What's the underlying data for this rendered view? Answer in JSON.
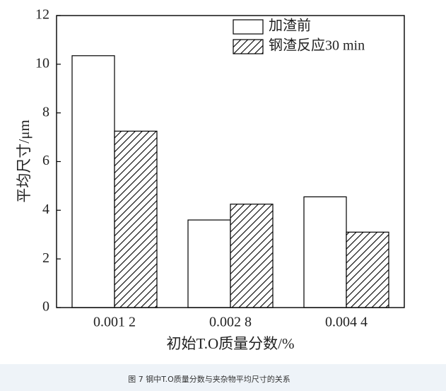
{
  "chart_data": {
    "type": "bar",
    "caption": "图 7 钢中T.O质量分数与夹杂物平均尺寸的关系",
    "xlabel": "初始T.O质量分数/%",
    "ylabel": "平均尺寸/μm",
    "categories": [
      "0.001 2",
      "0.002 8",
      "0.004 4"
    ],
    "series": [
      {
        "name": "加渣前",
        "color": "#ffffff",
        "pattern": "solid",
        "values": [
          10.35,
          3.6,
          4.55
        ]
      },
      {
        "name": "钢渣反应30 min",
        "color": "#000000",
        "pattern": "hatch",
        "values": [
          7.25,
          4.25,
          3.1
        ]
      }
    ],
    "ylim": [
      0,
      12
    ],
    "yticks": [
      0,
      2,
      4,
      6,
      8,
      10,
      12
    ]
  }
}
